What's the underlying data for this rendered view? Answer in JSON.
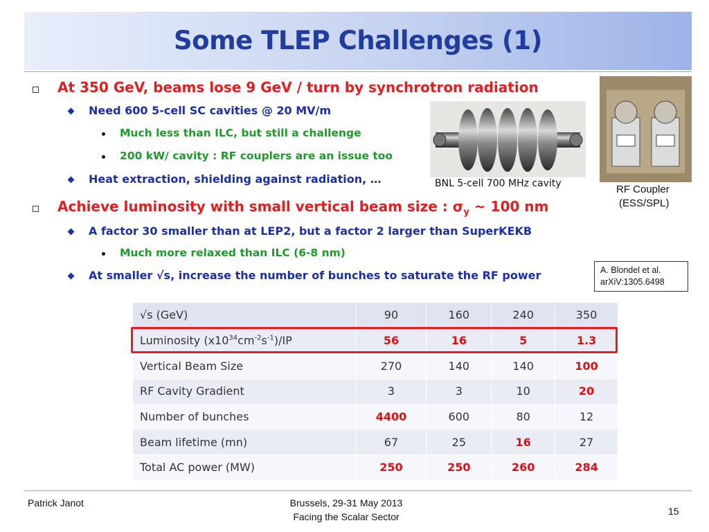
{
  "title": "Some TLEP Challenges (1)",
  "bullets": {
    "b1": "At 350 GeV, beams lose 9 GeV / turn by synchrotron radiation",
    "b1_1": "Need 600 5-cell SC cavities @ 20 MV/m",
    "b1_1_1": "Much less than ILC, but still a challenge",
    "b1_1_2": "200 kW/ cavity : RF couplers are an issue too",
    "b1_2": "Heat extraction, shielding against radiation, …",
    "b2_pre": "Achieve luminosity with small vertical beam size : ",
    "b2_sym": "σ",
    "b2_sub": "y",
    "b2_post": " ~ 100 nm",
    "b2_1": "A factor 30 smaller than at LEP2, but a factor 2 larger than SuperKEKB",
    "b2_1_1": "Much more relaxed than ILC (6-8 nm)",
    "b2_2": "At smaller √s, increase the number of bunches to saturate the RF power"
  },
  "captions": {
    "cavity": "BNL 5-cell 700 MHz cavity",
    "coupler_1": "RF Coupler",
    "coupler_2": "(ESS/SPL)"
  },
  "reference": {
    "line1": "A. Blondel et al.",
    "line2": "arXiV:1305.6498"
  },
  "table": {
    "header": {
      "label": "√s (GeV)",
      "c1": "90",
      "c2": "160",
      "c3": "240",
      "c4": "350"
    },
    "lumi_label_pre": "Luminosity (x10",
    "lumi_label_exp": "34",
    "lumi_label_mid": "cm",
    "lumi_label_exp2": "-2",
    "lumi_label_mid2": "s",
    "lumi_label_exp3": "-1",
    "lumi_label_post": ")/IP",
    "lumi": [
      "56",
      "16",
      "5",
      "1.3"
    ],
    "vbs_label": "Vertical Beam Size",
    "vbs": [
      "270",
      "140",
      "140",
      "100"
    ],
    "rfg_label": "RF Cavity Gradient",
    "rfg": [
      "3",
      "3",
      "10",
      "20"
    ],
    "nob_label": "Number of bunches",
    "nob": [
      "4400",
      "600",
      "80",
      "12"
    ],
    "bl_label": "Beam lifetime (mn)",
    "bl": [
      "67",
      "25",
      "16",
      "27"
    ],
    "tac_label": "Total AC power (MW)",
    "tac": [
      "250",
      "250",
      "260",
      "284"
    ]
  },
  "footer": {
    "author": "Patrick Janot",
    "venue1": "Brussels, 29-31 May 2013",
    "venue2": "Facing the Scalar Sector",
    "page": "15"
  }
}
